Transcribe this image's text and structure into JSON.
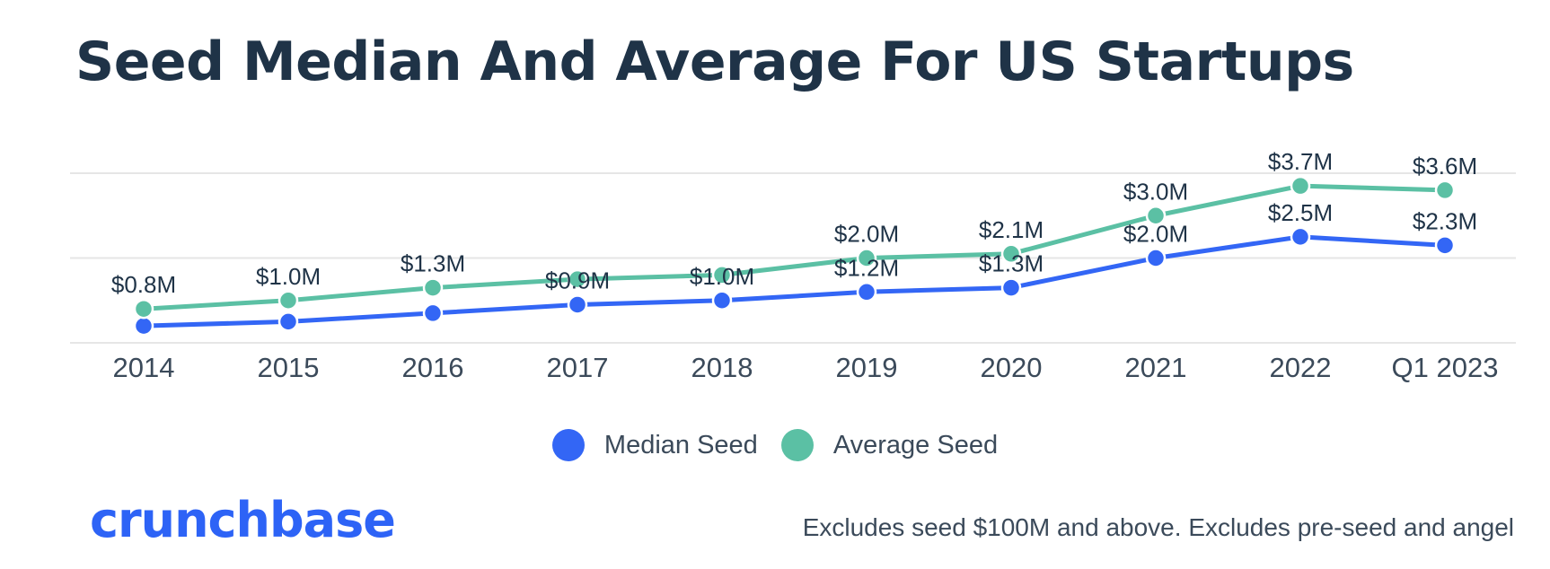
{
  "title": "Seed Median And Average For US Startups",
  "footnote": "Excludes seed $100M and above. Excludes pre-seed and angel",
  "brand": "crunchbase",
  "colors": {
    "median": "#3366f5",
    "average": "#5bc0a4",
    "grid": "#e6e6e6",
    "text": "#1f3347",
    "brand": "#2d63f6"
  },
  "chart_data": {
    "type": "line",
    "title": "Seed Median And Average For US Startups",
    "categories": [
      "2014",
      "2015",
      "2016",
      "2017",
      "2018",
      "2019",
      "2020",
      "2021",
      "2022",
      "Q1 2023"
    ],
    "series": [
      {
        "name": "Median Seed",
        "color": "#3366f5",
        "values": [
          0.4,
          0.5,
          0.7,
          0.9,
          1.0,
          1.2,
          1.3,
          2.0,
          2.5,
          2.3
        ],
        "labels": [
          "",
          "",
          "",
          "$0.9M",
          "$1.0M",
          "$1.2M",
          "$1.3M",
          "$2.0M",
          "$2.5M",
          "$2.3M"
        ]
      },
      {
        "name": "Average Seed",
        "color": "#5bc0a4",
        "values": [
          0.8,
          1.0,
          1.3,
          1.5,
          1.6,
          2.0,
          2.1,
          3.0,
          3.7,
          3.6
        ],
        "labels": [
          "$0.8M",
          "$1.0M",
          "$1.3M",
          "",
          "",
          "$2.0M",
          "$2.1M",
          "$3.0M",
          "$3.7M",
          "$3.6M"
        ]
      }
    ],
    "ylim": [
      0,
      4
    ],
    "grid": true,
    "legend": "bottom-center"
  }
}
